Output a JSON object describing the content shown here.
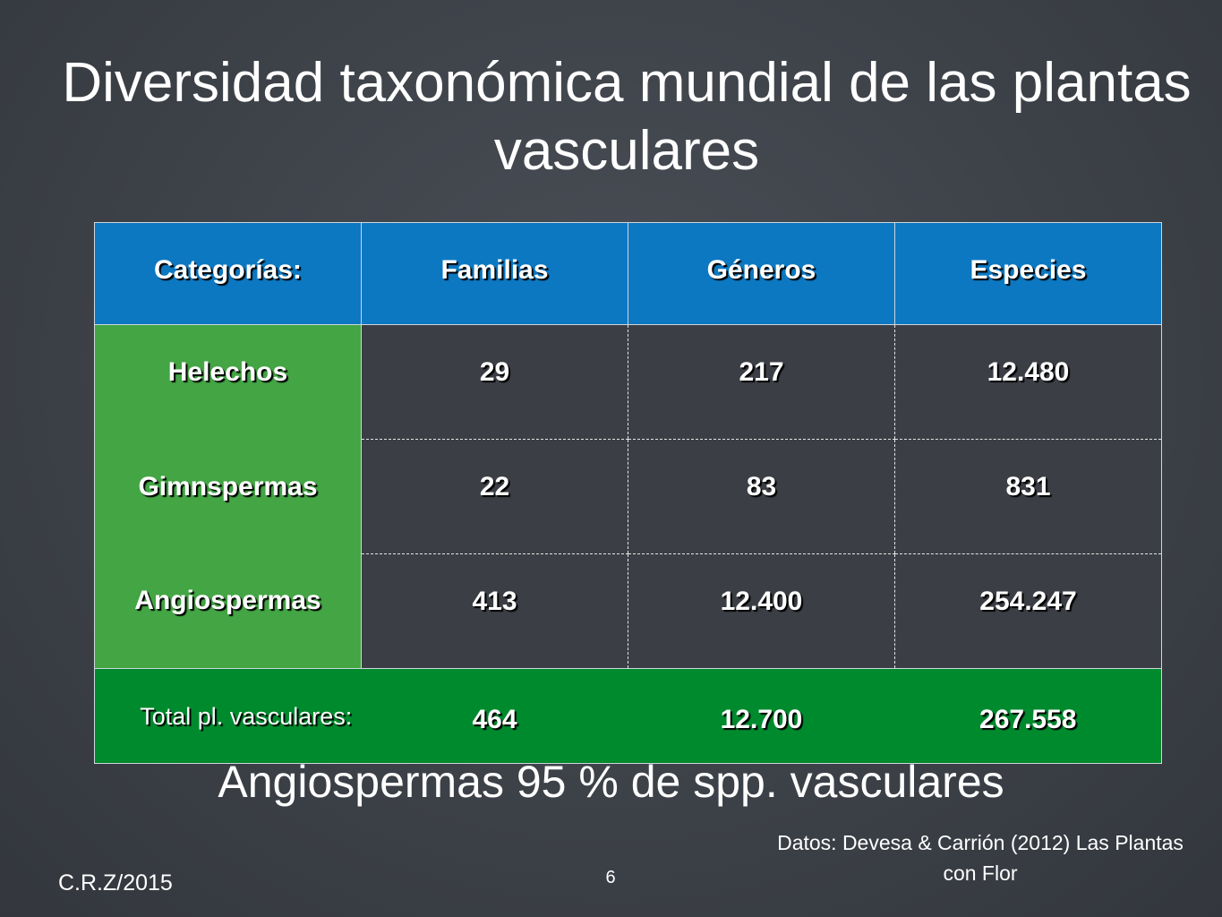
{
  "slide": {
    "title": "Diversidad taxonómica mundial de las plantas vasculares",
    "subtitle": "Angiospermas 95 % de spp. vasculares",
    "source": "Datos: Devesa & Carrión (2012) Las Plantas con Flor",
    "author": "C.R.Z/2015",
    "page_number": "6"
  },
  "table": {
    "headers": [
      "Categorías:",
      "Familias",
      "Géneros",
      "Especies"
    ],
    "rows": [
      {
        "category": "Helechos",
        "familias": "29",
        "generos": "217",
        "especies": "12.480"
      },
      {
        "category": "Gimnspermas",
        "familias": "22",
        "generos": "83",
        "especies": "831"
      },
      {
        "category": "Angiospermas",
        "familias": "413",
        "generos": "12.400",
        "especies": "254.247"
      }
    ],
    "total": {
      "label": "Total pl. vasculares:",
      "familias": "464",
      "generos": "12.700",
      "especies": "267.558"
    }
  },
  "colors": {
    "header_blue": "#0c78c2",
    "category_green": "#43a544",
    "total_green": "#008a2e",
    "background": "#3d4148"
  }
}
